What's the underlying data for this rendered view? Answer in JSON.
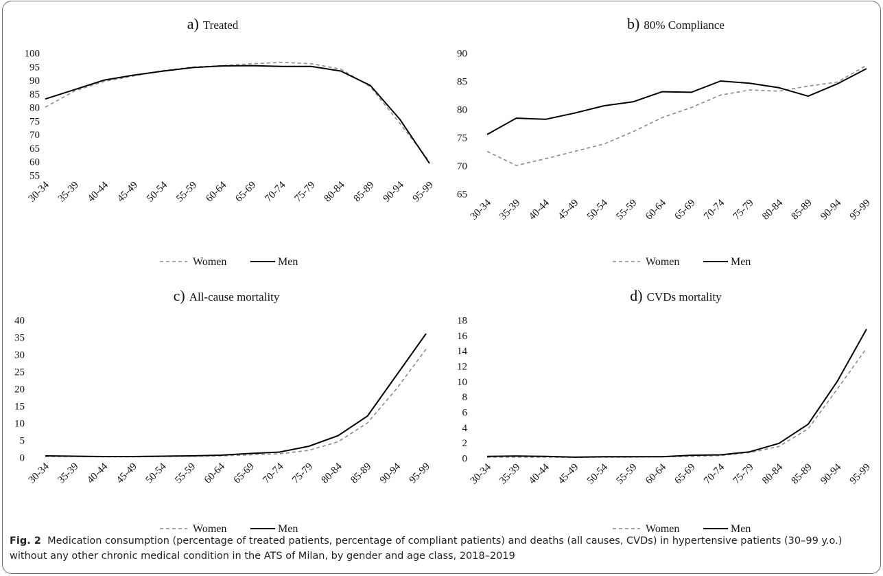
{
  "caption": {
    "label": "Fig. 2",
    "text": "Medication consumption (percentage of treated patients, percentage of compliant patients) and deaths (all causes, CVDs) in hypertensive patients (30–99 y.o.) without any other chronic medical condition in the ATS of Milan, by gender and age class, 2018–2019"
  },
  "chart_data": [
    {
      "type": "line",
      "title_prefix": "a)",
      "title": "Treated",
      "categories": [
        "30-34",
        "35-39",
        "40-44",
        "45-49",
        "50-54",
        "55-59",
        "60-64",
        "65-69",
        "70-74",
        "75-79",
        "80-84",
        "85-89",
        "90-94",
        "95-99"
      ],
      "series": [
        {
          "name": "Women",
          "style": "dashed",
          "color": "#8a8a8a",
          "values": [
            80,
            86,
            89.5,
            91.5,
            93.5,
            94.8,
            95.3,
            96,
            96.5,
            96,
            94,
            87.5,
            74,
            60
          ]
        },
        {
          "name": "Men",
          "style": "solid",
          "color": "#000000",
          "values": [
            83,
            86.5,
            90,
            91.8,
            93.3,
            94.6,
            95.2,
            95.3,
            95,
            95,
            93.3,
            88,
            75.5,
            59.3
          ]
        }
      ],
      "yticks": [
        55,
        60,
        65,
        70,
        75,
        80,
        85,
        90,
        95,
        100
      ],
      "ylim": [
        55,
        100
      ],
      "legend": "bottom-center"
    },
    {
      "type": "line",
      "title_prefix": "b)",
      "title": "80% Compliance",
      "categories": [
        "30-34",
        "35-39",
        "40-44",
        "45-49",
        "50-54",
        "55-59",
        "60-64",
        "65-69",
        "70-74",
        "75-79",
        "80-84",
        "85-89",
        "90-94",
        "95-99"
      ],
      "series": [
        {
          "name": "Women",
          "style": "dashed",
          "color": "#8a8a8a",
          "values": [
            72.5,
            70,
            71.2,
            72.5,
            73.8,
            76,
            78.5,
            80.3,
            82.5,
            83.4,
            83.2,
            84.1,
            84.8,
            87.8
          ]
        },
        {
          "name": "Men",
          "style": "solid",
          "color": "#000000",
          "values": [
            75.5,
            78.4,
            78.2,
            79.3,
            80.6,
            81.3,
            83.1,
            83,
            85,
            84.6,
            83.8,
            82.3,
            84.5,
            87.2
          ]
        }
      ],
      "yticks": [
        65,
        70,
        75,
        80,
        85,
        90
      ],
      "ylim": [
        65,
        90
      ],
      "legend": "bottom-center"
    },
    {
      "type": "line",
      "title_prefix": "c)",
      "title": "All-cause mortality",
      "categories": [
        "30-34",
        "35-39",
        "40-44",
        "45-49",
        "50-54",
        "55-59",
        "60-64",
        "65-69",
        "70-74",
        "75-79",
        "80-84",
        "85-89",
        "90-94",
        "95-99"
      ],
      "series": [
        {
          "name": "Women",
          "style": "dashed",
          "color": "#8a8a8a",
          "values": [
            0.2,
            0.2,
            0.1,
            0.1,
            0.2,
            0.3,
            0.4,
            0.7,
            1,
            2,
            4.5,
            10,
            20,
            31.5
          ]
        },
        {
          "name": "Men",
          "style": "solid",
          "color": "#000000",
          "values": [
            0.4,
            0.3,
            0.2,
            0.2,
            0.3,
            0.4,
            0.6,
            1.1,
            1.5,
            3.2,
            6.3,
            12,
            24,
            36
          ]
        }
      ],
      "yticks": [
        0,
        5,
        10,
        15,
        20,
        25,
        30,
        35,
        40
      ],
      "ylim": [
        0,
        40
      ],
      "legend": "bottom-center"
    },
    {
      "type": "line",
      "title_prefix": "d)",
      "title": "CVDs mortality",
      "categories": [
        "30-34",
        "35-39",
        "40-44",
        "45-49",
        "50-54",
        "55-59",
        "60-64",
        "65-69",
        "70-74",
        "75-79",
        "80-84",
        "85-89",
        "90-94",
        "95-99"
      ],
      "series": [
        {
          "name": "Women",
          "style": "dashed",
          "color": "#8a8a8a",
          "values": [
            0.1,
            0.1,
            0.1,
            0.05,
            0.1,
            0.1,
            0.15,
            0.2,
            0.3,
            0.7,
            1.5,
            3.8,
            9,
            14.3
          ]
        },
        {
          "name": "Men",
          "style": "solid",
          "color": "#000000",
          "values": [
            0.2,
            0.25,
            0.2,
            0.1,
            0.15,
            0.15,
            0.15,
            0.35,
            0.4,
            0.8,
            1.9,
            4.4,
            10,
            16.8
          ]
        }
      ],
      "yticks": [
        0,
        2,
        4,
        6,
        8,
        10,
        12,
        14,
        16,
        18
      ],
      "ylim": [
        0,
        18
      ],
      "legend": "bottom-center"
    }
  ]
}
